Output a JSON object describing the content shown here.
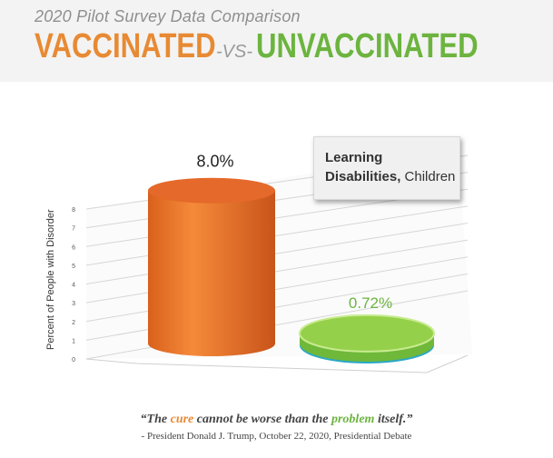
{
  "header": {
    "subtitle": "2020 Pilot Survey Data Comparison",
    "title_left": "VACCINATED",
    "title_vs": "-VS-",
    "title_right": "UNVACCINATED",
    "color_left": "#e88a33",
    "color_right": "#6cb43f"
  },
  "legend": {
    "line1": "Learning",
    "line2_bold": "Disabilities,",
    "line2_rest": " Children"
  },
  "quote": {
    "open": "“The ",
    "cure": "cure",
    "middle": " cannot be worse than the ",
    "problem": "problem",
    "close": " itself.”",
    "attribution": "- President Donald J. Trump, October 22, 2020, Presidential Debate"
  },
  "chart_data": {
    "type": "bar",
    "style": "3d-cylinder",
    "categories": [
      "Vaccinated",
      "Unvaccinated"
    ],
    "values": [
      8.0,
      0.72
    ],
    "value_labels": [
      "8.0%",
      "0.72%"
    ],
    "colors": [
      "#e8722a",
      "#8cc63f"
    ],
    "title": "",
    "xlabel": "",
    "ylabel": "Percent of People with Disorder",
    "ylim": [
      0,
      8
    ],
    "yticks": [
      0,
      1,
      2,
      3,
      4,
      5,
      6,
      7,
      8
    ],
    "grid": true
  }
}
